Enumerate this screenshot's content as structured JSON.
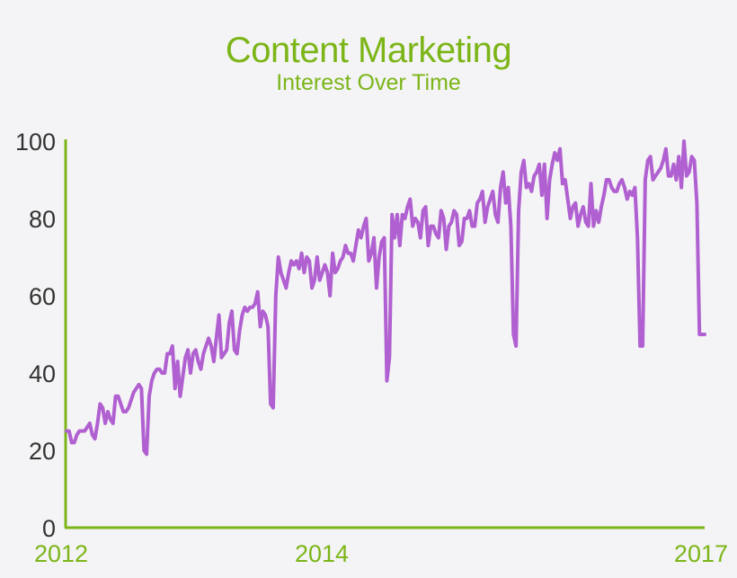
{
  "chart_data": {
    "type": "line",
    "title": "Content Marketing",
    "subtitle": "Interest Over Time",
    "xlabel": "",
    "ylabel": "",
    "ylim": [
      0,
      100
    ],
    "y_ticks": [
      "0",
      "20",
      "40",
      "60",
      "80",
      "100"
    ],
    "x_ticks": [
      "2012",
      "2014",
      "2017"
    ],
    "x_range": [
      "2012-01",
      "2017-01"
    ],
    "grid": false,
    "legend": "none",
    "colors": {
      "line": "#b060d0",
      "axis": "#7cb518",
      "title": "#7cb518"
    },
    "series": [
      {
        "values": [
          25,
          25,
          22,
          22,
          24,
          25,
          25,
          25,
          26,
          27,
          24,
          23,
          27,
          32,
          31,
          27,
          30,
          28,
          27,
          34,
          34,
          32,
          30,
          30,
          31,
          33,
          35,
          36,
          37,
          36,
          20,
          19,
          34,
          38,
          40,
          41,
          41,
          40,
          40,
          45,
          45,
          47,
          36,
          43,
          34,
          39,
          44,
          46,
          40,
          45,
          46,
          43,
          41,
          45,
          47,
          49,
          47,
          43,
          49,
          55,
          44,
          45,
          46,
          53,
          56,
          46,
          45,
          51,
          55,
          57,
          56,
          57,
          57,
          58,
          61,
          52,
          56,
          55,
          52,
          32,
          31,
          60,
          70,
          66,
          64,
          62,
          66,
          69,
          68,
          69,
          67,
          71,
          66,
          70,
          69,
          62,
          64,
          70,
          64,
          66,
          68,
          66,
          60,
          71,
          66,
          67,
          69,
          70,
          73,
          71,
          71,
          69,
          73,
          77,
          75,
          78,
          80,
          69,
          71,
          75,
          62,
          70,
          74,
          75,
          38,
          44,
          81,
          75,
          81,
          73,
          81,
          80,
          83,
          85,
          78,
          80,
          79,
          75,
          82,
          83,
          73,
          78,
          78,
          76,
          75,
          82,
          80,
          72,
          78,
          79,
          82,
          81,
          73,
          74,
          80,
          80,
          82,
          78,
          78,
          84,
          85,
          87,
          79,
          83,
          85,
          87,
          81,
          79,
          88,
          92,
          84,
          88,
          78,
          50,
          47,
          82,
          92,
          95,
          88,
          89,
          87,
          91,
          92,
          94,
          86,
          94,
          80,
          90,
          94,
          97,
          95,
          98,
          89,
          90,
          85,
          80,
          83,
          84,
          78,
          81,
          83,
          79,
          78,
          89,
          78,
          82,
          79,
          83,
          86,
          90,
          90,
          88,
          87,
          87,
          89,
          90,
          88,
          85,
          87,
          86,
          88,
          75,
          47,
          47,
          90,
          95,
          96,
          90,
          91,
          92,
          93,
          95,
          98,
          91,
          91,
          94,
          90,
          96,
          88,
          100,
          91,
          92,
          96,
          95,
          84,
          50,
          50,
          50
        ]
      }
    ]
  }
}
